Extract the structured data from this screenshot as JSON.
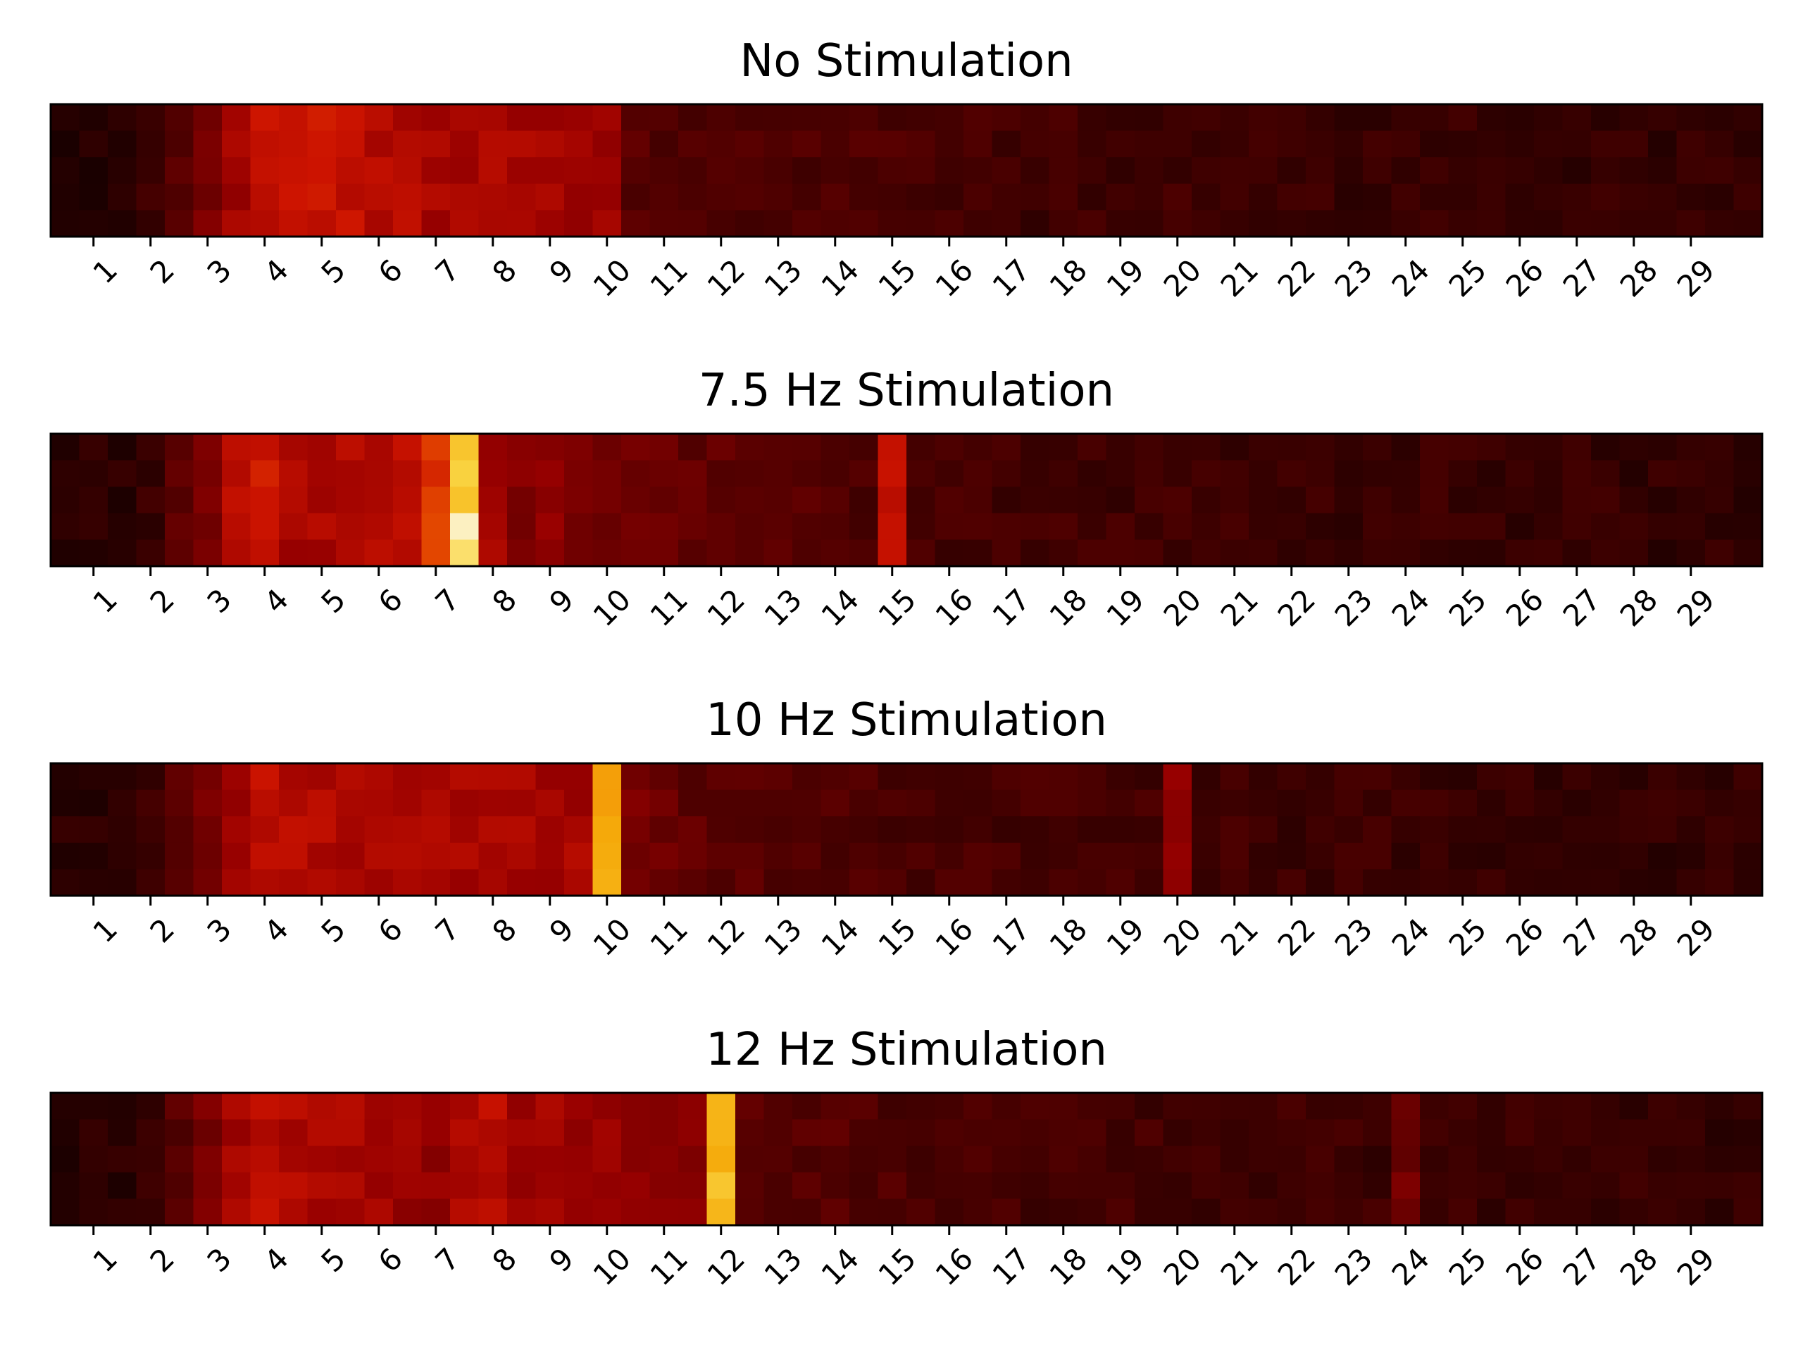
{
  "chart_data": [
    {
      "type": "heatmap",
      "title": "No Stimulation",
      "x_ticks": [
        1,
        2,
        3,
        4,
        5,
        6,
        7,
        8,
        9,
        10,
        11,
        12,
        13,
        14,
        15,
        16,
        17,
        18,
        19,
        20,
        21,
        22,
        23,
        24,
        25,
        26,
        27,
        28,
        29
      ],
      "x_range": [
        0.25,
        30.25
      ],
      "bin_width": 0.5,
      "rows": 5,
      "xlabel": "",
      "ylabel": "",
      "colormap": "fire",
      "y_ticks_visible": false,
      "grid": false,
      "baseline": [
        0.05,
        0.05,
        0.05,
        0.1,
        0.2,
        0.3,
        0.42,
        0.52,
        0.55,
        0.54,
        0.52,
        0.48,
        0.47,
        0.45,
        0.44,
        0.44,
        0.44,
        0.43,
        0.42,
        0.41,
        0.2,
        0.19,
        0.18,
        0.18,
        0.17,
        0.17,
        0.17,
        0.16,
        0.18,
        0.16,
        0.15,
        0.14,
        0.14,
        0.13,
        0.12,
        0.13,
        0.12,
        0.12,
        0.12,
        0.12,
        0.11,
        0.11,
        0.11,
        0.11,
        0.11,
        0.1,
        0.1,
        0.1,
        0.1,
        0.1,
        0.09,
        0.09,
        0.09,
        0.09,
        0.09,
        0.08,
        0.08,
        0.08,
        0.08,
        0.08
      ],
      "peaks": [],
      "peak_heights": []
    },
    {
      "type": "heatmap",
      "title": "7.5 Hz Stimulation",
      "x_ticks": [
        1,
        2,
        3,
        4,
        5,
        6,
        7,
        8,
        9,
        10,
        11,
        12,
        13,
        14,
        15,
        16,
        17,
        18,
        19,
        20,
        21,
        22,
        23,
        24,
        25,
        26,
        27,
        28,
        29
      ],
      "x_range": [
        0.25,
        30.25
      ],
      "bin_width": 0.5,
      "rows": 5,
      "xlabel": "",
      "ylabel": "",
      "colormap": "fire",
      "y_ticks_visible": false,
      "grid": false,
      "baseline": [
        0.05,
        0.05,
        0.05,
        0.1,
        0.2,
        0.3,
        0.5,
        0.55,
        0.45,
        0.45,
        0.47,
        0.48,
        0.5,
        0.62,
        0.62,
        0.42,
        0.33,
        0.36,
        0.32,
        0.3,
        0.26,
        0.24,
        0.23,
        0.22,
        0.21,
        0.22,
        0.2,
        0.18,
        0.17,
        0.16,
        0.15,
        0.14,
        0.14,
        0.13,
        0.13,
        0.13,
        0.12,
        0.12,
        0.12,
        0.12,
        0.12,
        0.11,
        0.11,
        0.11,
        0.11,
        0.1,
        0.1,
        0.1,
        0.1,
        0.1,
        0.09,
        0.09,
        0.09,
        0.09,
        0.09,
        0.08,
        0.08,
        0.08,
        0.08,
        0.08
      ],
      "peaks": [
        7.5,
        15
      ],
      "peak_heights": [
        0.95,
        0.55
      ]
    },
    {
      "type": "heatmap",
      "title": "10 Hz Stimulation",
      "x_ticks": [
        1,
        2,
        3,
        4,
        5,
        6,
        7,
        8,
        9,
        10,
        11,
        12,
        13,
        14,
        15,
        16,
        17,
        18,
        19,
        20,
        21,
        22,
        23,
        24,
        25,
        26,
        27,
        28,
        29
      ],
      "x_range": [
        0.25,
        30.25
      ],
      "bin_width": 0.5,
      "rows": 5,
      "xlabel": "",
      "ylabel": "",
      "colormap": "fire",
      "y_ticks_visible": false,
      "grid": false,
      "baseline": [
        0.05,
        0.05,
        0.05,
        0.1,
        0.2,
        0.3,
        0.42,
        0.5,
        0.48,
        0.47,
        0.46,
        0.46,
        0.46,
        0.45,
        0.45,
        0.45,
        0.44,
        0.44,
        0.44,
        0.44,
        0.3,
        0.28,
        0.22,
        0.21,
        0.2,
        0.19,
        0.19,
        0.18,
        0.17,
        0.16,
        0.16,
        0.15,
        0.15,
        0.14,
        0.14,
        0.14,
        0.14,
        0.13,
        0.13,
        0.13,
        0.12,
        0.12,
        0.12,
        0.11,
        0.11,
        0.11,
        0.11,
        0.1,
        0.1,
        0.1,
        0.1,
        0.09,
        0.09,
        0.09,
        0.09,
        0.09,
        0.08,
        0.08,
        0.08,
        0.08
      ],
      "peaks": [
        10,
        20
      ],
      "peak_heights": [
        0.85,
        0.42
      ]
    },
    {
      "type": "heatmap",
      "title": "12 Hz Stimulation",
      "x_ticks": [
        1,
        2,
        3,
        4,
        5,
        6,
        7,
        8,
        9,
        10,
        11,
        12,
        13,
        14,
        15,
        16,
        17,
        18,
        19,
        20,
        21,
        22,
        23,
        24,
        25,
        26,
        27,
        28,
        29
      ],
      "x_range": [
        0.25,
        30.25
      ],
      "bin_width": 0.5,
      "rows": 5,
      "xlabel": "",
      "ylabel": "",
      "colormap": "fire",
      "y_ticks_visible": false,
      "grid": false,
      "baseline": [
        0.05,
        0.05,
        0.05,
        0.1,
        0.2,
        0.3,
        0.42,
        0.5,
        0.46,
        0.44,
        0.44,
        0.43,
        0.4,
        0.38,
        0.45,
        0.48,
        0.43,
        0.42,
        0.41,
        0.42,
        0.38,
        0.35,
        0.34,
        0.3,
        0.22,
        0.2,
        0.19,
        0.19,
        0.18,
        0.17,
        0.16,
        0.16,
        0.15,
        0.15,
        0.14,
        0.14,
        0.14,
        0.13,
        0.13,
        0.13,
        0.12,
        0.12,
        0.12,
        0.12,
        0.12,
        0.11,
        0.11,
        0.11,
        0.11,
        0.1,
        0.1,
        0.1,
        0.1,
        0.1,
        0.09,
        0.09,
        0.09,
        0.09,
        0.08,
        0.08
      ],
      "peaks": [
        12,
        24
      ],
      "peak_heights": [
        0.9,
        0.3
      ]
    }
  ]
}
